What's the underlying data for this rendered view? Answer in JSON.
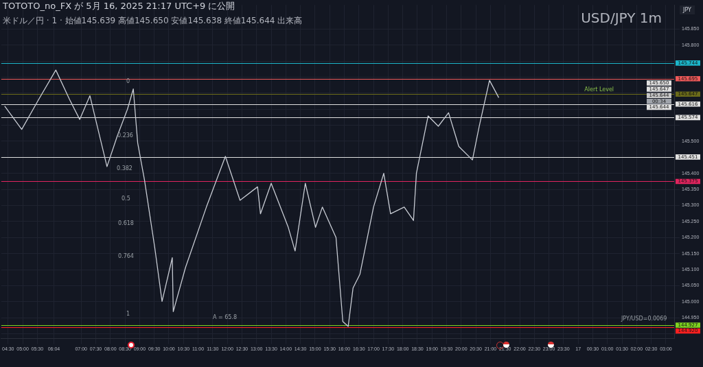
{
  "chart_data": {
    "type": "line",
    "title": "USD/JPY 1m",
    "subtitle": "米ドル／円 · 1 · 始値145.639 高値145.650 安値145.638 終値145.644 出来高",
    "ylabel": "JPY",
    "annotations": [
      "TOTOTO_no_FX が 5月 16, 2025 21:17 UTC+9 に公開",
      {
        "text": "Alert Level",
        "x": "2025-05-17T00:43",
        "y": 145.646
      },
      "JPY/USD=0.0069",
      "A = 65.8",
      "0",
      "0.236",
      "0.382",
      "0.5",
      "0.618",
      "0.764",
      "1",
      "145.650",
      "145.647",
      "145.644",
      "00:34",
      "145.644"
    ],
    "series": [
      {
        "color": "#c8ccd4",
        "x": [
          "2025-05-16T04:23",
          "2025-05-16T04:58",
          "2025-05-16T05:33",
          "2025-05-16T06:08",
          "2025-05-16T06:36",
          "2025-05-16T06:57",
          "2025-05-16T07:18",
          "2025-05-16T07:53",
          "2025-05-16T08:14",
          "2025-05-16T08:35",
          "2025-05-16T08:47",
          "2025-05-16T08:56",
          "2025-05-16T09:10",
          "2025-05-16T09:31",
          "2025-05-16T09:46",
          "2025-05-16T10:07",
          "2025-05-16T10:09",
          "2025-05-16T10:34",
          "2025-05-16T11:17",
          "2025-05-16T11:56",
          "2025-05-16T12:26",
          "2025-05-16T13:02",
          "2025-05-16T13:08",
          "2025-05-16T13:30",
          "2025-05-16T14:05",
          "2025-05-16T14:19",
          "2025-05-16T14:40",
          "2025-05-16T15:01",
          "2025-05-16T15:15",
          "2025-05-16T15:43",
          "2025-05-16T15:57",
          "2025-05-16T16:08",
          "2025-05-16T16:18",
          "2025-05-16T16:32",
          "2025-05-16T17:00",
          "2025-05-16T17:21",
          "2025-05-16T17:35",
          "2025-05-16T18:03",
          "2025-05-16T18:22",
          "2025-05-16T18:28",
          "2025-05-16T18:52",
          "2025-05-16T19:13",
          "2025-05-16T19:34",
          "2025-05-16T19:55",
          "2025-05-16T20:23",
          "2025-05-16T20:37",
          "2025-05-16T20:58",
          "2025-05-16T21:17"
        ],
        "values": [
          145.61,
          145.537,
          145.631,
          145.722,
          145.631,
          145.568,
          145.642,
          145.421,
          145.516,
          145.6,
          145.663,
          145.495,
          145.379,
          145.169,
          145.001,
          145.137,
          144.969,
          145.106,
          145.295,
          145.453,
          145.316,
          145.358,
          145.274,
          145.369,
          145.232,
          145.158,
          145.369,
          145.232,
          145.295,
          145.2,
          144.938,
          144.923,
          145.043,
          145.085,
          145.295,
          145.4,
          145.274,
          145.295,
          145.253,
          145.4,
          145.579,
          145.547,
          145.589,
          145.484,
          145.442,
          145.547,
          145.69,
          145.636
        ]
      }
    ],
    "ref_lines": [
      {
        "axis": "y",
        "value": 145.744,
        "label": "145.744",
        "color": "#1cb5c9"
      },
      {
        "axis": "y",
        "value": 145.695,
        "label": "145.695",
        "color": "#f05a5a"
      },
      {
        "axis": "y",
        "value": 145.647,
        "label": "145.647",
        "color": "#6b6b1a"
      },
      {
        "axis": "y",
        "value": 145.616,
        "label": "145.616",
        "color": "#e0e0e0"
      },
      {
        "axis": "y",
        "value": 145.574,
        "label": "145.574",
        "color": "#e0e0e0"
      },
      {
        "axis": "y",
        "value": 145.451,
        "label": "145.451",
        "color": "#e0e0e0"
      },
      {
        "axis": "y",
        "value": 145.375,
        "label": "145.375",
        "color": "#e0245e"
      },
      {
        "axis": "y",
        "value": 144.927,
        "label": "144.927",
        "color": "#7ed321"
      },
      {
        "axis": "y",
        "value": 144.92,
        "label": "144.920",
        "color": "#ff2020"
      }
    ],
    "xlim": [
      "2025-05-16T04:16",
      "2025-05-17T03:17"
    ],
    "xticks": [
      {
        "value": "2025-05-16T04:30",
        "label": "04:30"
      },
      {
        "value": "2025-05-16T05:00",
        "label": "05:00"
      },
      {
        "value": "2025-05-16T05:30",
        "label": "05:30"
      },
      {
        "value": "2025-05-16T06:04",
        "label": "06:04"
      },
      {
        "value": "2025-05-16T07:00",
        "label": "07:00"
      },
      {
        "value": "2025-05-16T07:30",
        "label": "07:30"
      },
      {
        "value": "2025-05-16T08:00",
        "label": "08:00"
      },
      {
        "value": "2025-05-16T08:30",
        "label": "08:30"
      },
      {
        "value": "2025-05-16T09:00",
        "label": "09:00"
      },
      {
        "value": "2025-05-16T09:30",
        "label": "09:30"
      },
      {
        "value": "2025-05-16T10:00",
        "label": "10:00"
      },
      {
        "value": "2025-05-16T10:30",
        "label": "10:30"
      },
      {
        "value": "2025-05-16T11:00",
        "label": "11:00"
      },
      {
        "value": "2025-05-16T11:30",
        "label": "11:30"
      },
      {
        "value": "2025-05-16T12:00",
        "label": "12:00"
      },
      {
        "value": "2025-05-16T12:30",
        "label": "12:30"
      },
      {
        "value": "2025-05-16T13:00",
        "label": "13:00"
      },
      {
        "value": "2025-05-16T13:30",
        "label": "13:30"
      },
      {
        "value": "2025-05-16T14:00",
        "label": "14:00"
      },
      {
        "value": "2025-05-16T14:30",
        "label": "14:30"
      },
      {
        "value": "2025-05-16T15:00",
        "label": "15:00"
      },
      {
        "value": "2025-05-16T15:30",
        "label": "15:30"
      },
      {
        "value": "2025-05-16T16:00",
        "label": "16:00"
      },
      {
        "value": "2025-05-16T16:30",
        "label": "16:30"
      },
      {
        "value": "2025-05-16T17:00",
        "label": "17:00"
      },
      {
        "value": "2025-05-16T17:30",
        "label": "17:30"
      },
      {
        "value": "2025-05-16T18:00",
        "label": "18:00"
      },
      {
        "value": "2025-05-16T18:30",
        "label": "18:30"
      },
      {
        "value": "2025-05-16T19:00",
        "label": "19:00"
      },
      {
        "value": "2025-05-16T19:30",
        "label": "19:30"
      },
      {
        "value": "2025-05-16T20:00",
        "label": "20:00"
      },
      {
        "value": "2025-05-16T20:30",
        "label": "20:30"
      },
      {
        "value": "2025-05-16T21:00",
        "label": "21:00"
      },
      {
        "value": "2025-05-16T21:30",
        "label": "21:30"
      },
      {
        "value": "2025-05-16T22:00",
        "label": "22:00"
      },
      {
        "value": "2025-05-16T22:30",
        "label": "22:30"
      },
      {
        "value": "2025-05-16T23:00",
        "label": "23:00"
      },
      {
        "value": "2025-05-16T23:30",
        "label": "23:30"
      },
      {
        "value": "2025-05-17T00:00",
        "label": "17"
      },
      {
        "value": "2025-05-17T00:30",
        "label": "00:30"
      },
      {
        "value": "2025-05-17T01:00",
        "label": "01:00"
      },
      {
        "value": "2025-05-17T01:30",
        "label": "01:30"
      },
      {
        "value": "2025-05-17T02:00",
        "label": "02:00"
      },
      {
        "value": "2025-05-17T02:30",
        "label": "02:30"
      },
      {
        "value": "2025-05-17T03:00",
        "label": "03:00"
      }
    ],
    "ylim": [
      144.885,
      145.925
    ],
    "yticks": [
      {
        "value": 144.9,
        "label": null
      },
      {
        "value": 144.95,
        "label": "144.950"
      },
      {
        "value": 145.0,
        "label": "145.000"
      },
      {
        "value": 145.05,
        "label": "145.050"
      },
      {
        "value": 145.1,
        "label": "145.100"
      },
      {
        "value": 145.15,
        "label": "145.150"
      },
      {
        "value": 145.2,
        "label": "145.200"
      },
      {
        "value": 145.25,
        "label": "145.250"
      },
      {
        "value": 145.3,
        "label": "145.300"
      },
      {
        "value": 145.35,
        "label": "145.350"
      },
      {
        "value": 145.4,
        "label": "145.400"
      },
      {
        "value": 145.45,
        "label": null
      },
      {
        "value": 145.5,
        "label": "145.500"
      },
      {
        "value": 145.55,
        "label": null
      },
      {
        "value": 145.6,
        "label": null
      },
      {
        "value": 145.65,
        "label": null
      },
      {
        "value": 145.7,
        "label": null
      },
      {
        "value": 145.75,
        "label": null
      },
      {
        "value": 145.8,
        "label": "145.800"
      },
      {
        "value": 145.85,
        "label": "145.850"
      }
    ],
    "grid": true,
    "legend": false,
    "marker": "none",
    "line_style": "solid"
  }
}
